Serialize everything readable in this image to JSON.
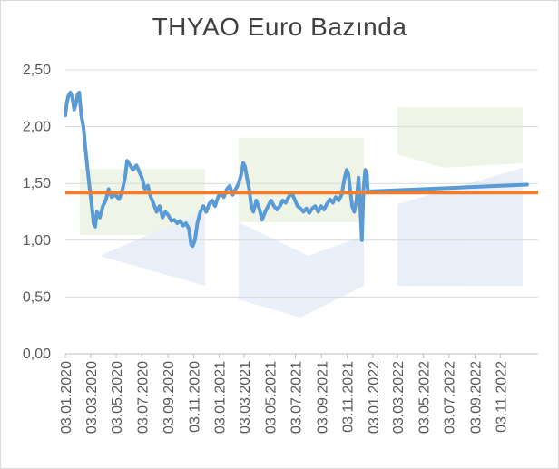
{
  "chart_data": {
    "type": "line",
    "title": "THYAO Euro Bazında",
    "xlabel": "",
    "ylabel": "",
    "ylim": [
      0,
      2.5
    ],
    "y_ticks": [
      "0,00",
      "0,50",
      "1,00",
      "1,50",
      "2,00",
      "2,50"
    ],
    "x_ticks": [
      "03.01.2020",
      "03.03.2020",
      "03.05.2020",
      "03.07.2020",
      "03.09.2020",
      "03.11.2020",
      "03.01.2021",
      "03.03.2021",
      "03.05.2021",
      "03.07.2021",
      "03.09.2021",
      "03.11.2021",
      "03.01.2022",
      "03.03.2022",
      "03.05.2022",
      "03.07.2022",
      "03.09.2022",
      "03.11.2022"
    ],
    "grid": "horizontal",
    "colors": {
      "series": "#5b9bd5",
      "reference": "#ed7d31",
      "grid": "#d9d9d9",
      "axis": "#bfbfbf"
    },
    "series": [
      {
        "values": [
          [
            "2020-01-03",
            2.1
          ],
          [
            "2020-01-06",
            2.2
          ],
          [
            "2020-01-10",
            2.27
          ],
          [
            "2020-01-15",
            2.3
          ],
          [
            "2020-01-20",
            2.25
          ],
          [
            "2020-01-24",
            2.15
          ],
          [
            "2020-01-28",
            2.2
          ],
          [
            "2020-02-01",
            2.28
          ],
          [
            "2020-02-05",
            2.3
          ],
          [
            "2020-02-10",
            2.1
          ],
          [
            "2020-02-15",
            2.0
          ],
          [
            "2020-02-20",
            1.8
          ],
          [
            "2020-02-25",
            1.62
          ],
          [
            "2020-03-01",
            1.45
          ],
          [
            "2020-03-06",
            1.3
          ],
          [
            "2020-03-10",
            1.15
          ],
          [
            "2020-03-14",
            1.12
          ],
          [
            "2020-03-18",
            1.25
          ],
          [
            "2020-03-25",
            1.2
          ],
          [
            "2020-04-01",
            1.3
          ],
          [
            "2020-04-08",
            1.35
          ],
          [
            "2020-04-15",
            1.45
          ],
          [
            "2020-04-22",
            1.38
          ],
          [
            "2020-05-01",
            1.4
          ],
          [
            "2020-05-10",
            1.36
          ],
          [
            "2020-05-18",
            1.45
          ],
          [
            "2020-05-24",
            1.55
          ],
          [
            "2020-05-29",
            1.7
          ],
          [
            "2020-06-05",
            1.66
          ],
          [
            "2020-06-12",
            1.62
          ],
          [
            "2020-06-20",
            1.66
          ],
          [
            "2020-06-27",
            1.6
          ],
          [
            "2020-07-03",
            1.55
          ],
          [
            "2020-07-10",
            1.45
          ],
          [
            "2020-07-17",
            1.48
          ],
          [
            "2020-07-24",
            1.38
          ],
          [
            "2020-07-31",
            1.32
          ],
          [
            "2020-08-07",
            1.25
          ],
          [
            "2020-08-14",
            1.3
          ],
          [
            "2020-08-21",
            1.2
          ],
          [
            "2020-08-28",
            1.25
          ],
          [
            "2020-09-04",
            1.22
          ],
          [
            "2020-09-11",
            1.17
          ],
          [
            "2020-09-18",
            1.18
          ],
          [
            "2020-09-25",
            1.15
          ],
          [
            "2020-10-02",
            1.17
          ],
          [
            "2020-10-09",
            1.13
          ],
          [
            "2020-10-16",
            1.15
          ],
          [
            "2020-10-23",
            1.1
          ],
          [
            "2020-10-28",
            0.96
          ],
          [
            "2020-11-01",
            0.95
          ],
          [
            "2020-11-06",
            1.0
          ],
          [
            "2020-11-12",
            1.15
          ],
          [
            "2020-11-19",
            1.25
          ],
          [
            "2020-11-26",
            1.3
          ],
          [
            "2020-12-03",
            1.25
          ],
          [
            "2020-12-10",
            1.32
          ],
          [
            "2020-12-17",
            1.35
          ],
          [
            "2020-12-24",
            1.3
          ],
          [
            "2020-12-31",
            1.38
          ],
          [
            "2021-01-07",
            1.42
          ],
          [
            "2021-01-14",
            1.38
          ],
          [
            "2021-01-21",
            1.45
          ],
          [
            "2021-01-28",
            1.48
          ],
          [
            "2021-02-04",
            1.4
          ],
          [
            "2021-02-11",
            1.45
          ],
          [
            "2021-02-18",
            1.5
          ],
          [
            "2021-02-24",
            1.58
          ],
          [
            "2021-03-01",
            1.68
          ],
          [
            "2021-03-05",
            1.65
          ],
          [
            "2021-03-10",
            1.55
          ],
          [
            "2021-03-15",
            1.45
          ],
          [
            "2021-03-20",
            1.3
          ],
          [
            "2021-03-25",
            1.25
          ],
          [
            "2021-04-01",
            1.35
          ],
          [
            "2021-04-08",
            1.28
          ],
          [
            "2021-04-15",
            1.18
          ],
          [
            "2021-04-22",
            1.25
          ],
          [
            "2021-04-29",
            1.3
          ],
          [
            "2021-05-06",
            1.35
          ],
          [
            "2021-05-13",
            1.3
          ],
          [
            "2021-05-20",
            1.27
          ],
          [
            "2021-05-27",
            1.3
          ],
          [
            "2021-06-03",
            1.35
          ],
          [
            "2021-06-10",
            1.33
          ],
          [
            "2021-06-17",
            1.38
          ],
          [
            "2021-06-24",
            1.42
          ],
          [
            "2021-07-01",
            1.36
          ],
          [
            "2021-07-08",
            1.3
          ],
          [
            "2021-07-15",
            1.28
          ],
          [
            "2021-07-22",
            1.25
          ],
          [
            "2021-07-29",
            1.28
          ],
          [
            "2021-08-05",
            1.24
          ],
          [
            "2021-08-12",
            1.28
          ],
          [
            "2021-08-19",
            1.3
          ],
          [
            "2021-08-26",
            1.25
          ],
          [
            "2021-09-02",
            1.3
          ],
          [
            "2021-09-09",
            1.27
          ],
          [
            "2021-09-16",
            1.32
          ],
          [
            "2021-09-23",
            1.36
          ],
          [
            "2021-09-30",
            1.33
          ],
          [
            "2021-10-07",
            1.38
          ],
          [
            "2021-10-14",
            1.35
          ],
          [
            "2021-10-21",
            1.4
          ],
          [
            "2021-10-28",
            1.55
          ],
          [
            "2021-11-02",
            1.62
          ],
          [
            "2021-11-06",
            1.58
          ],
          [
            "2021-11-10",
            1.45
          ],
          [
            "2021-11-15",
            1.3
          ],
          [
            "2021-11-20",
            1.25
          ],
          [
            "2021-11-25",
            1.35
          ],
          [
            "2021-11-30",
            1.55
          ],
          [
            "2021-12-04",
            1.3
          ],
          [
            "2021-12-08",
            1.0
          ],
          [
            "2021-12-12",
            1.45
          ],
          [
            "2021-12-16",
            1.62
          ],
          [
            "2021-12-20",
            1.58
          ],
          [
            "2021-12-22",
            1.43
          ],
          [
            "2023-01-05",
            1.49
          ]
        ]
      }
    ],
    "reference_line": {
      "value": 1.42
    }
  }
}
